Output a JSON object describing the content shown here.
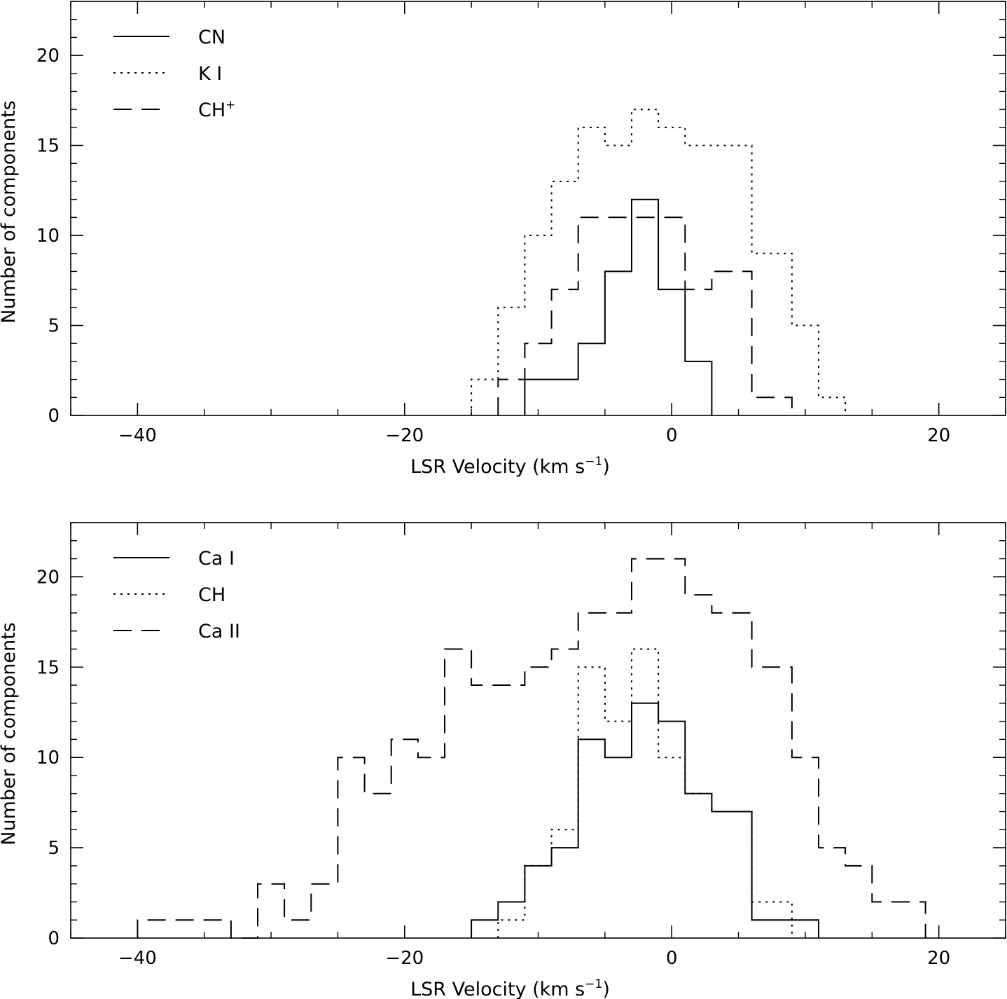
{
  "chart_data": [
    {
      "type": "histogram-step",
      "xlabel": "LSR Velocity (km s",
      "xlabel_sup": "−1",
      "xlabel_close": ")",
      "ylabel": "Number of components",
      "xlim": [
        -45,
        25
      ],
      "ylim": [
        0,
        23
      ],
      "xticks": [
        -40,
        -20,
        0,
        20
      ],
      "xtick_labels": [
        "−40",
        "−20",
        "0",
        "20"
      ],
      "yticks": [
        0,
        5,
        10,
        15,
        20
      ],
      "ytick_labels": [
        "0",
        "5",
        "10",
        "15",
        "20"
      ],
      "legend_position": "top-left",
      "series": [
        {
          "name": "CN",
          "name_sup": "",
          "style": "solid",
          "edges": [
            -11,
            -7,
            -5,
            -3,
            -1,
            1,
            3
          ],
          "values": [
            2,
            4,
            8,
            12,
            7,
            3
          ]
        },
        {
          "name": "K I",
          "name_sup": "",
          "style": "dotted",
          "edges": [
            -15,
            -13,
            -11,
            -9,
            -7,
            -5,
            -3,
            -1,
            1,
            6,
            9,
            11,
            13
          ],
          "values": [
            2,
            6,
            10,
            13,
            16,
            15,
            17,
            16,
            15,
            9,
            5,
            1
          ]
        },
        {
          "name": "CH",
          "name_sup": "+",
          "style": "dashed",
          "edges": [
            -13,
            -11,
            -9,
            -7,
            1,
            3,
            6,
            9
          ],
          "values": [
            2,
            4,
            7,
            11,
            7,
            8,
            1
          ]
        }
      ]
    },
    {
      "type": "histogram-step",
      "xlabel": "LSR Velocity (km s",
      "xlabel_sup": "−1",
      "xlabel_close": ")",
      "ylabel": "Number of components",
      "xlim": [
        -45,
        25
      ],
      "ylim": [
        0,
        23
      ],
      "xticks": [
        -40,
        -20,
        0,
        20
      ],
      "xtick_labels": [
        "−40",
        "−20",
        "0",
        "20"
      ],
      "yticks": [
        0,
        5,
        10,
        15,
        20
      ],
      "ytick_labels": [
        "0",
        "5",
        "10",
        "15",
        "20"
      ],
      "legend_position": "top-left",
      "series": [
        {
          "name": "Ca I",
          "name_sup": "",
          "style": "solid",
          "edges": [
            -15,
            -13,
            -11,
            -9,
            -7,
            -5,
            -3,
            -1,
            1,
            3,
            6,
            11
          ],
          "values": [
            1,
            2,
            4,
            5,
            11,
            10,
            13,
            12,
            8,
            7,
            1
          ]
        },
        {
          "name": "CH",
          "name_sup": "",
          "style": "dotted",
          "edges": [
            -13,
            -11,
            -9,
            -7,
            -5,
            -3,
            -1,
            1,
            3,
            6,
            9
          ],
          "values": [
            1,
            4,
            6,
            15,
            12,
            16,
            10,
            8,
            7,
            2
          ]
        },
        {
          "name": "Ca II",
          "name_sup": "",
          "style": "dashed",
          "edges": [
            -40,
            -35,
            -33,
            -31,
            -29,
            -27,
            -25,
            -23,
            -21,
            -19,
            -17,
            -15,
            -11,
            -9,
            -7,
            -3,
            1,
            3,
            6,
            9,
            11,
            13,
            15,
            19
          ],
          "values": [
            1,
            1,
            0,
            3,
            1,
            3,
            10,
            8,
            11,
            10,
            16,
            14,
            15,
            16,
            18,
            21,
            19,
            18,
            15,
            10,
            5,
            4,
            2
          ]
        }
      ]
    }
  ]
}
